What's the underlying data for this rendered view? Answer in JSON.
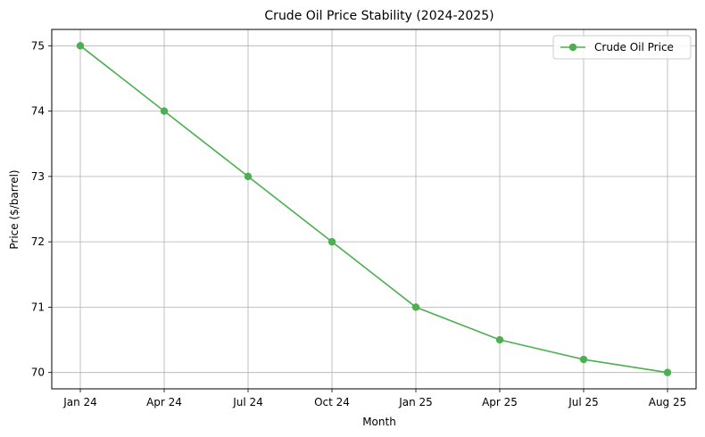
{
  "chart_data": {
    "type": "line",
    "title": "Crude Oil Price Stability (2024-2025)",
    "xlabel": "Month",
    "ylabel": "Price ($/barrel)",
    "categories": [
      "Jan 24",
      "Apr 24",
      "Jul 24",
      "Oct 24",
      "Jan 25",
      "Apr 25",
      "Jul 25",
      "Aug 25"
    ],
    "series": [
      {
        "name": "Crude Oil Price",
        "values": [
          75,
          74,
          73,
          72,
          71,
          70.5,
          70.2,
          70
        ],
        "color": "#4caf50"
      }
    ],
    "ylim": [
      69.75,
      75.25
    ],
    "yticks": [
      70,
      71,
      72,
      73,
      74,
      75
    ],
    "grid": true,
    "legend_position": "top-right"
  }
}
